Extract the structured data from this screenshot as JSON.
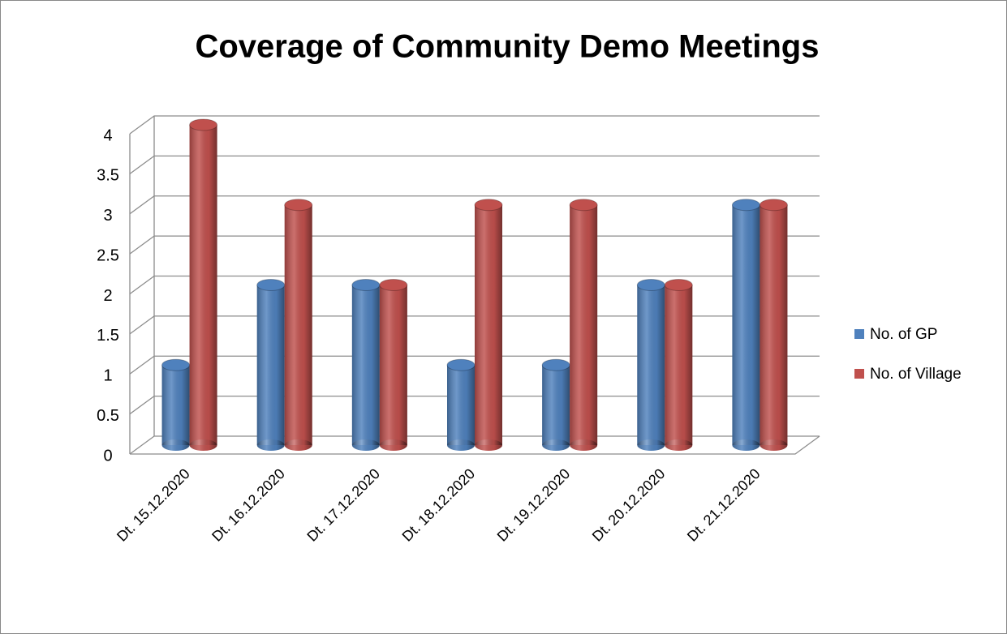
{
  "chart_data": {
    "type": "bar3d",
    "title": "Coverage of Community Demo Meetings",
    "categories": [
      "Dt. 15.12.2020",
      "Dt. 16.12.2020",
      "Dt. 17.12.2020",
      "Dt. 18.12.2020",
      "Dt. 19.12.2020",
      "Dt. 20.12.2020",
      "Dt. 21.12.2020"
    ],
    "series": [
      {
        "name": "No. of GP",
        "color": "#4f81bd",
        "values": [
          1,
          2,
          2,
          1,
          1,
          2,
          3
        ]
      },
      {
        "name": "No. of Village",
        "color": "#c0504d",
        "values": [
          4,
          3,
          2,
          3,
          3,
          2,
          3
        ]
      }
    ],
    "ylim": [
      0,
      4
    ],
    "yticks": [
      0,
      0.5,
      1,
      1.5,
      2,
      2.5,
      3,
      3.5,
      4
    ],
    "grid": true,
    "legend": "right"
  }
}
